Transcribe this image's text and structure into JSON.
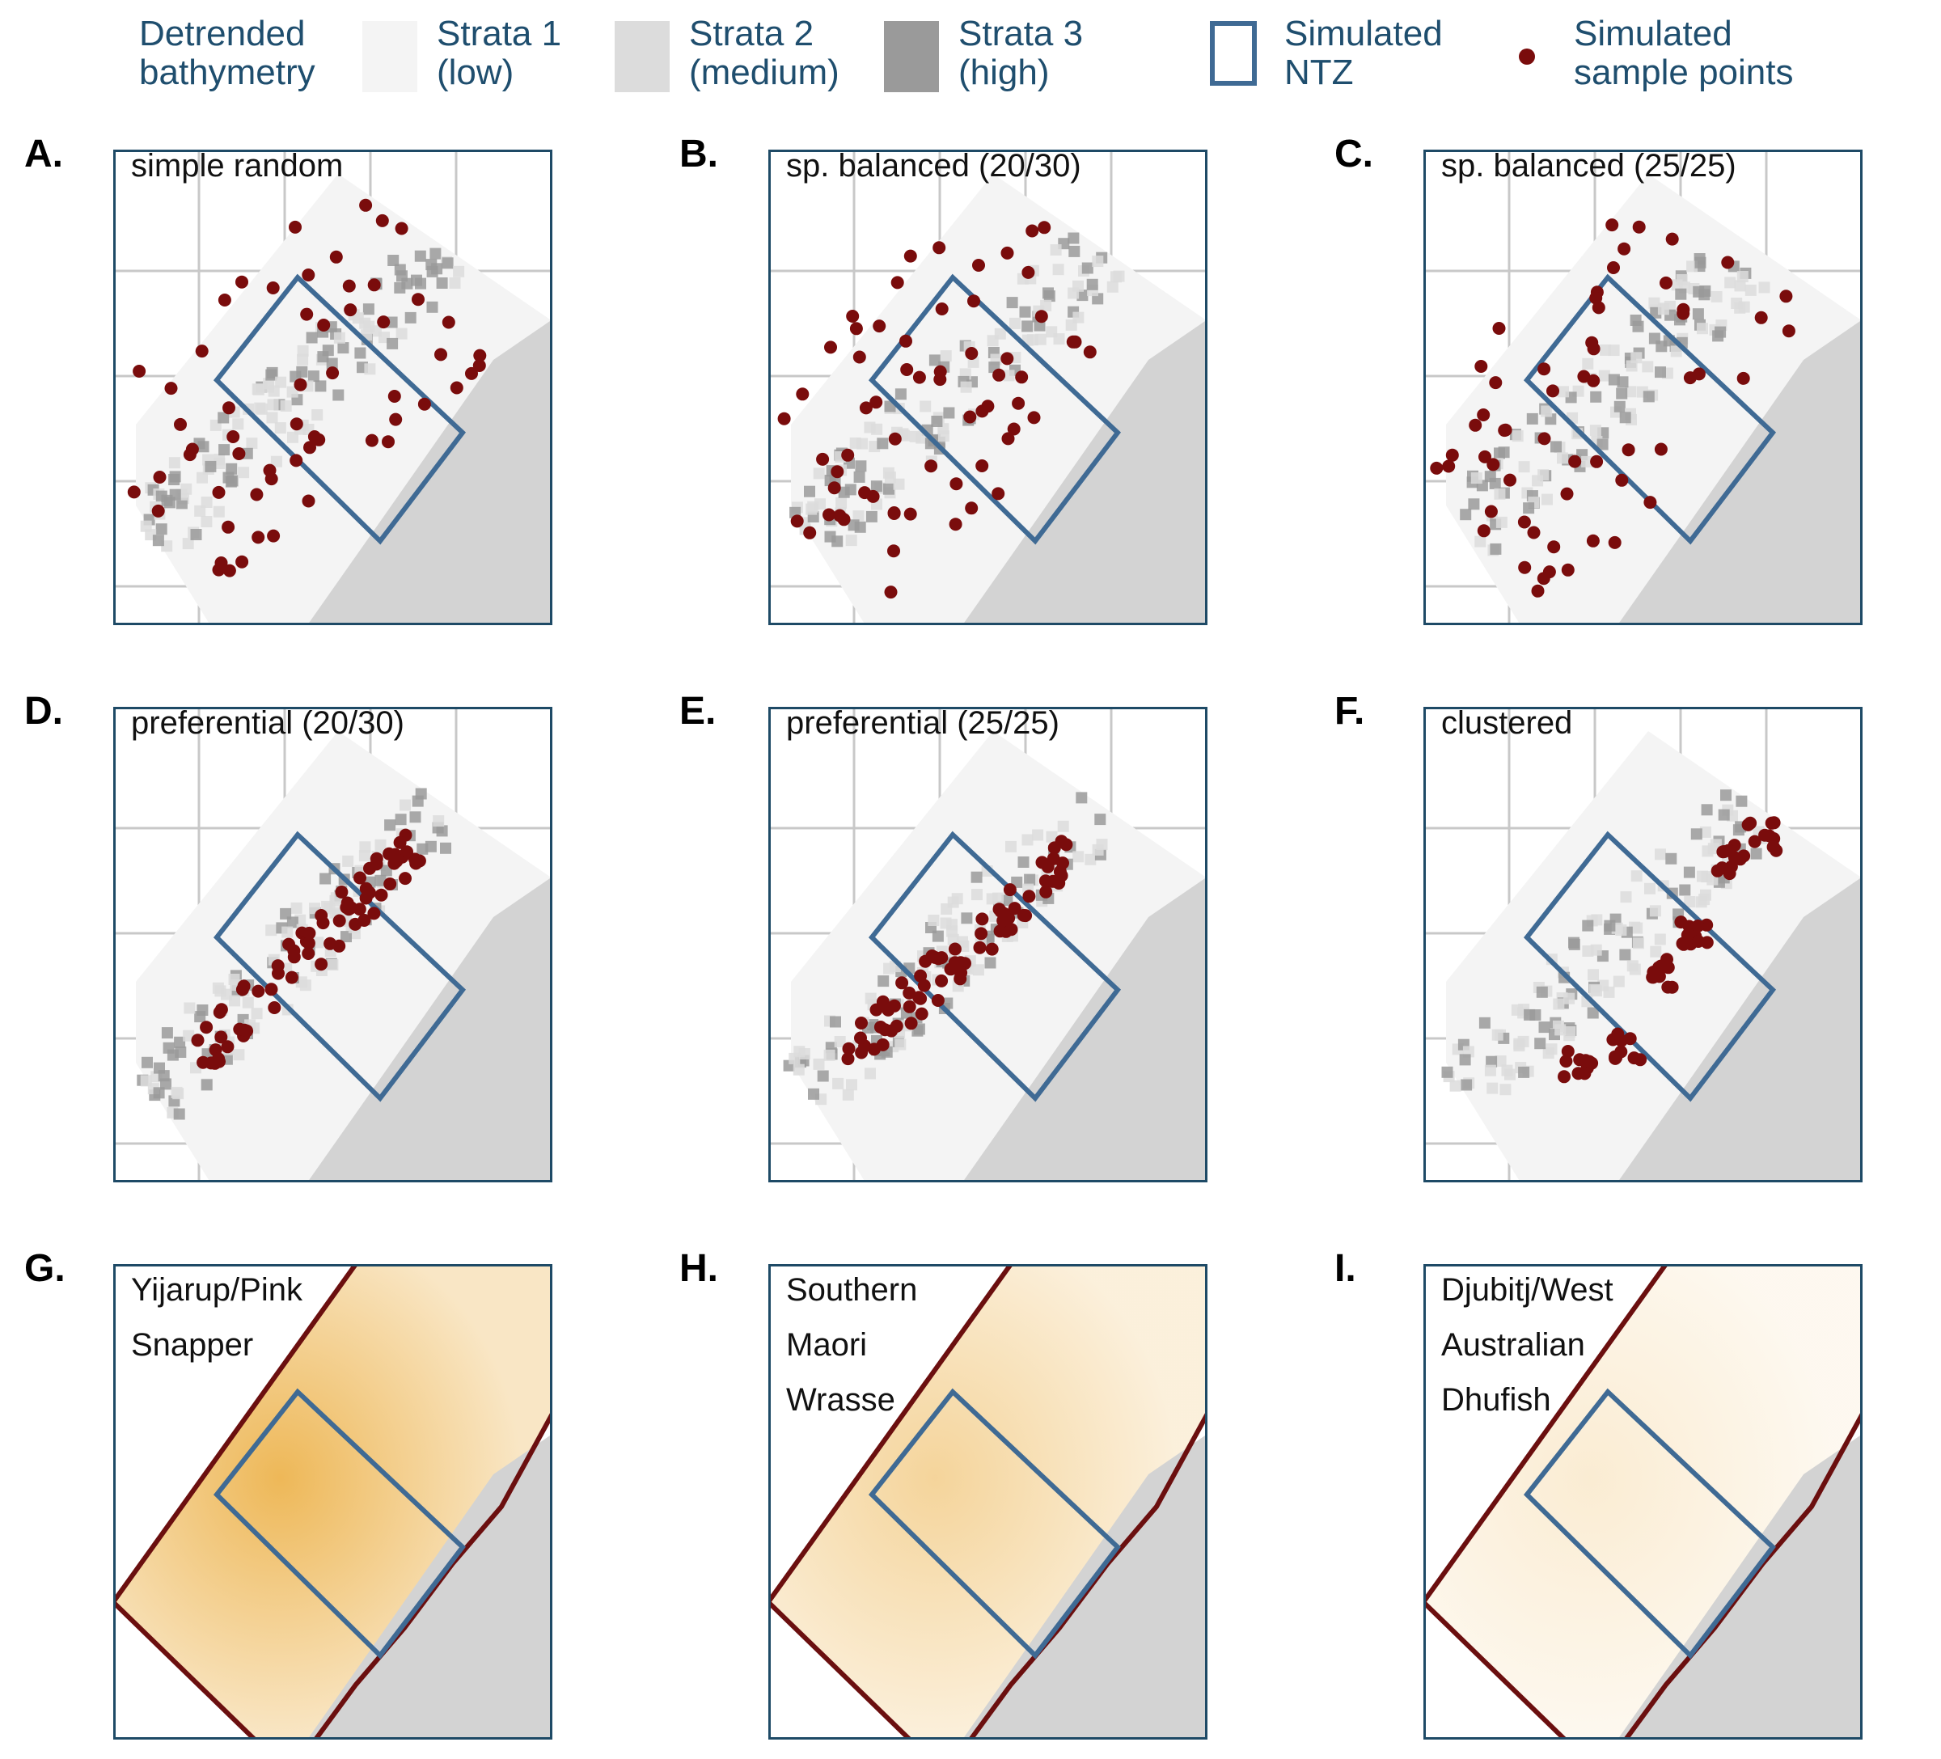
{
  "legend": {
    "bathymetry_label": "Detrended\nbathymetry",
    "strata1_label": "Strata 1\n(low)",
    "strata2_label": "Strata 2\n(medium)",
    "strata3_label": "Strata 3\n(high)",
    "ntz_label": "Simulated\nNTZ",
    "points_label": "Simulated\nsample points"
  },
  "colors": {
    "strata1": "#f4f4f4",
    "strata2": "#dcdcdc",
    "strata3": "#9a9a9a",
    "ntz": "#3f6a94",
    "points": "#7a0c0c",
    "land": "#d3d3d3",
    "frame": "#1e4a66",
    "grid": "#c8c8c8",
    "density": "#e8a020",
    "outer_zone": "#6b0f0f"
  },
  "panels": [
    {
      "letter": "A.",
      "title": "simple random",
      "kind": "sample",
      "pattern": "random"
    },
    {
      "letter": "B.",
      "title": "sp. balanced (20/30)",
      "kind": "sample",
      "pattern": "balanced"
    },
    {
      "letter": "C.",
      "title": "sp. balanced (25/25)",
      "kind": "sample",
      "pattern": "balanced2"
    },
    {
      "letter": "D.",
      "title": "preferential (20/30)",
      "kind": "sample",
      "pattern": "preferential"
    },
    {
      "letter": "E.",
      "title": "preferential (25/25)",
      "kind": "sample",
      "pattern": "preferential2"
    },
    {
      "letter": "F.",
      "title": "clustered",
      "kind": "sample",
      "pattern": "clustered"
    },
    {
      "letter": "G.",
      "title": "Yijarup/Pink\nSnapper",
      "kind": "density",
      "intensity": 0.75
    },
    {
      "letter": "H.",
      "title": "Southern\nMaori\nWrasse",
      "kind": "density",
      "intensity": 0.45
    },
    {
      "letter": "I.",
      "title": "Djubitj/West\nAustralian\nDhufish",
      "kind": "density",
      "intensity": 0.2
    }
  ]
}
